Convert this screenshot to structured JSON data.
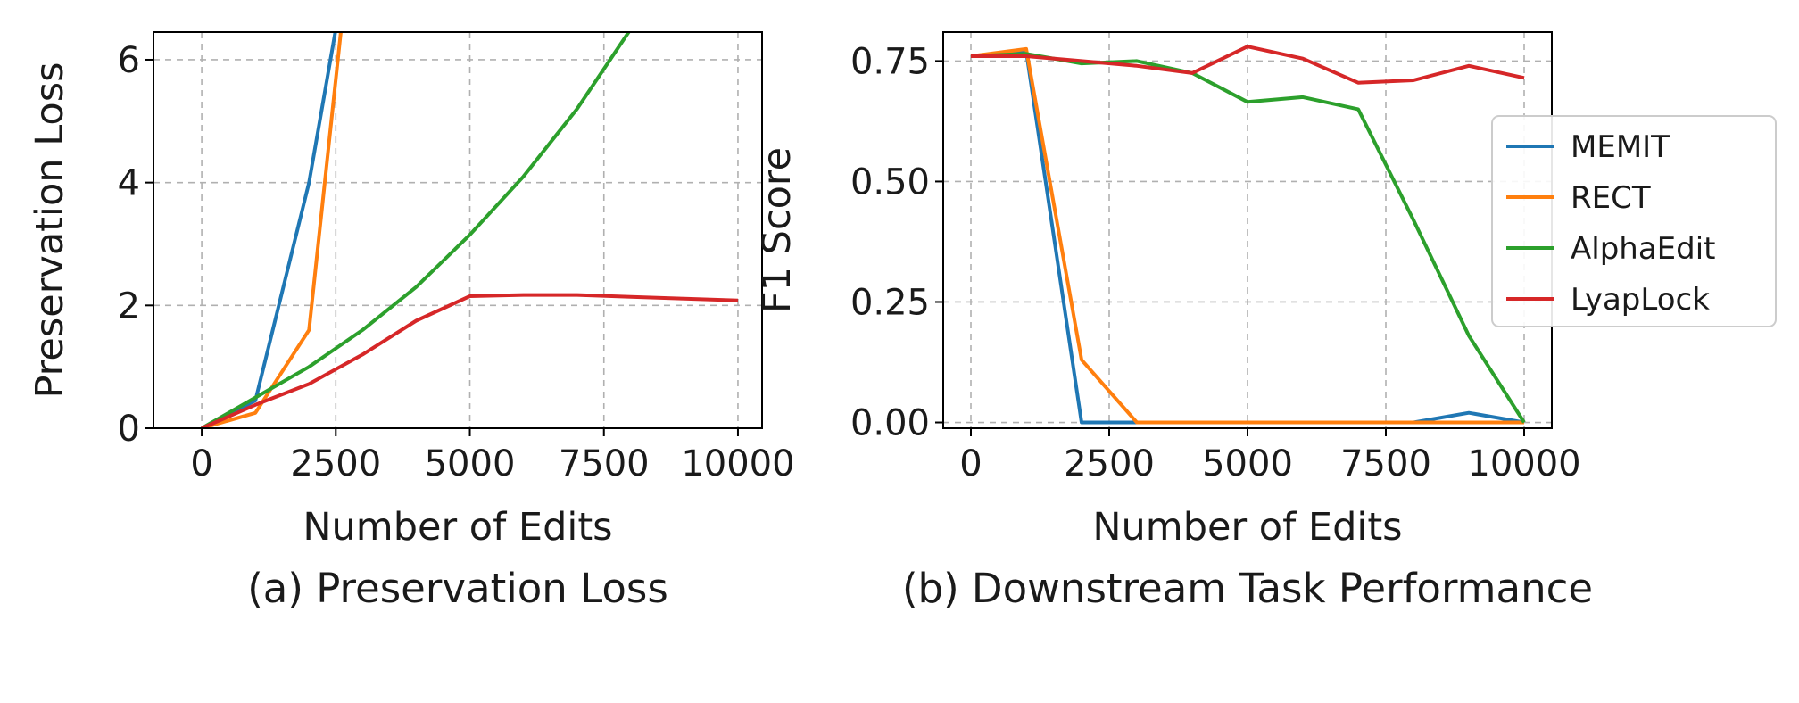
{
  "chart_data": [
    {
      "type": "line",
      "panel": "a",
      "caption": "(a) Preservation Loss",
      "xlabel": "Number of Edits",
      "ylabel": "Preservation Loss",
      "xlim": [
        -900,
        10450
      ],
      "ylim": [
        0,
        6.45
      ],
      "xticks": [
        0,
        2500,
        5000,
        7500,
        10000
      ],
      "xtick_labels": [
        "0",
        "2500",
        "5000",
        "7500",
        "10000"
      ],
      "yticks": [
        0,
        2,
        4,
        6
      ],
      "ytick_labels": [
        "0",
        "2",
        "4",
        "6"
      ],
      "grid": true,
      "series": [
        {
          "name": "MEMIT",
          "color": "#1f77b4",
          "x": [
            0,
            1000,
            2000,
            2500,
            3000
          ],
          "y": [
            0,
            0.45,
            4.0,
            6.5,
            9.5
          ]
        },
        {
          "name": "RECT",
          "color": "#ff7f0e",
          "x": [
            0,
            1000,
            2000,
            2600,
            3000
          ],
          "y": [
            0,
            0.25,
            1.6,
            6.5,
            9.5
          ]
        },
        {
          "name": "AlphaEdit",
          "color": "#2ca02c",
          "x": [
            0,
            1000,
            2000,
            3000,
            4000,
            5000,
            6000,
            7000,
            8000,
            9000
          ],
          "y": [
            0,
            0.5,
            1.0,
            1.6,
            2.3,
            3.15,
            4.1,
            5.2,
            6.5,
            8.0
          ]
        },
        {
          "name": "LyapLock",
          "color": "#d62728",
          "x": [
            0,
            1000,
            2000,
            3000,
            4000,
            5000,
            6000,
            7000,
            8000,
            9000,
            10000
          ],
          "y": [
            0,
            0.38,
            0.72,
            1.2,
            1.75,
            2.15,
            2.17,
            2.17,
            2.14,
            2.11,
            2.08
          ]
        }
      ]
    },
    {
      "type": "line",
      "panel": "b",
      "caption": "(b) Downstream Task Performance",
      "xlabel": "Number of Edits",
      "ylabel": "F1 Score",
      "xlim": [
        -500,
        10500
      ],
      "ylim": [
        -0.012,
        0.81
      ],
      "xticks": [
        0,
        2500,
        5000,
        7500,
        10000
      ],
      "xtick_labels": [
        "0",
        "2500",
        "5000",
        "7500",
        "10000"
      ],
      "yticks": [
        0,
        0.25,
        0.5,
        0.75
      ],
      "ytick_labels": [
        "0.00",
        "0.25",
        "0.50",
        "0.75"
      ],
      "grid": true,
      "legend": "right",
      "series": [
        {
          "name": "MEMIT",
          "color": "#1f77b4",
          "x": [
            0,
            1000,
            2000,
            3000,
            4000,
            5000,
            6000,
            7000,
            8000,
            9000,
            10000
          ],
          "y": [
            0.76,
            0.77,
            0.0,
            0.0,
            0.0,
            0.0,
            0.0,
            0.0,
            0.0,
            0.02,
            0.0
          ]
        },
        {
          "name": "RECT",
          "color": "#ff7f0e",
          "x": [
            0,
            1000,
            2000,
            3000,
            4000,
            5000,
            6000,
            7000,
            8000,
            9000,
            10000
          ],
          "y": [
            0.76,
            0.775,
            0.13,
            0.0,
            0.0,
            0.0,
            0.0,
            0.0,
            0.0,
            0.0,
            0.0
          ]
        },
        {
          "name": "AlphaEdit",
          "color": "#2ca02c",
          "x": [
            0,
            1000,
            2000,
            3000,
            4000,
            5000,
            6000,
            7000,
            8000,
            9000,
            10000
          ],
          "y": [
            0.76,
            0.765,
            0.745,
            0.75,
            0.725,
            0.665,
            0.675,
            0.65,
            0.42,
            0.18,
            0.0
          ]
        },
        {
          "name": "LyapLock",
          "color": "#d62728",
          "x": [
            0,
            1000,
            2000,
            3000,
            4000,
            5000,
            6000,
            7000,
            8000,
            9000,
            10000
          ],
          "y": [
            0.76,
            0.76,
            0.75,
            0.74,
            0.725,
            0.78,
            0.755,
            0.705,
            0.71,
            0.74,
            0.715
          ]
        }
      ]
    }
  ]
}
